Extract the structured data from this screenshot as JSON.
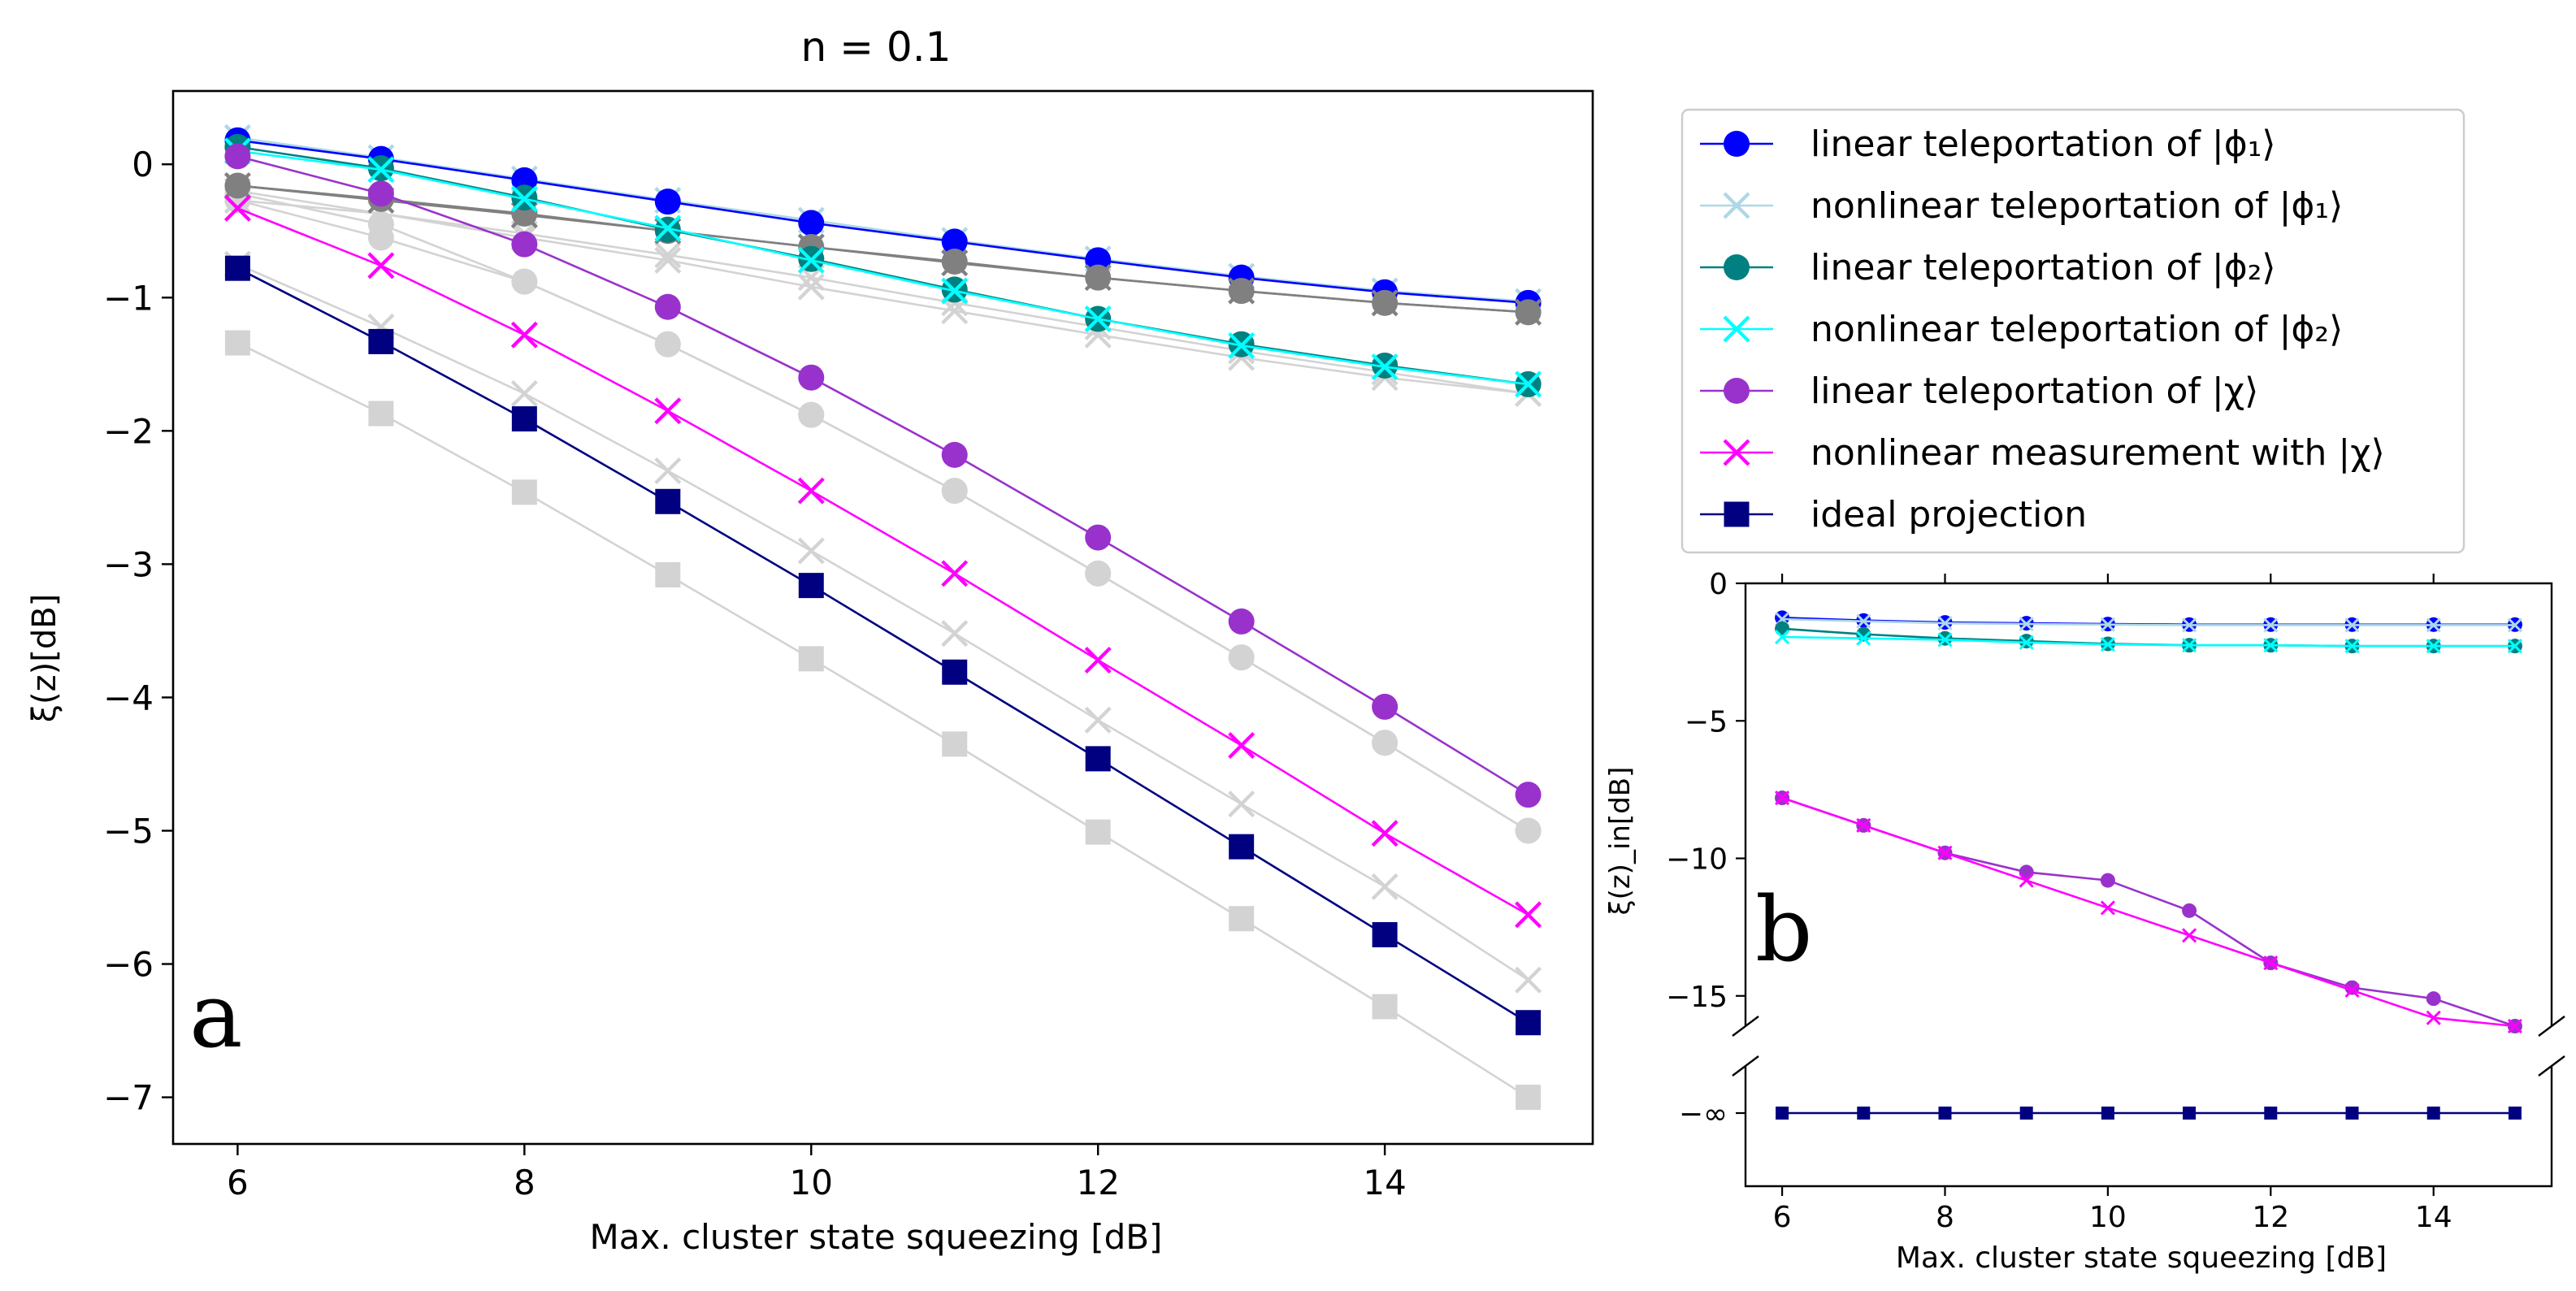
{
  "figure": {
    "title": "n = 0.1",
    "xlabel": "Max. cluster state squeezing [dB]"
  },
  "legend": {
    "placement": "top-right",
    "entries": [
      {
        "label": "linear teleportation of |ϕ₁⟩",
        "color": "#0000ff",
        "marker": "o"
      },
      {
        "label": "nonlinear teleportation of |ϕ₁⟩",
        "color": "#add8e6",
        "marker": "x"
      },
      {
        "label": "linear teleportation of |ϕ₂⟩",
        "color": "#008080",
        "marker": "o"
      },
      {
        "label": "nonlinear teleportation of |ϕ₂⟩",
        "color": "#00ffff",
        "marker": "x"
      },
      {
        "label": "linear teleportation of |χ⟩",
        "color": "#9932cc",
        "marker": "o"
      },
      {
        "label": "nonlinear measurement with |χ⟩",
        "color": "#ff00ff",
        "marker": "x"
      },
      {
        "label": "ideal projection",
        "color": "#000080",
        "marker": "s"
      }
    ]
  },
  "chart_data": [
    {
      "type": "line",
      "panel_label": "a",
      "title": "n = 0.1",
      "xlabel": "Max. cluster state squeezing [dB]",
      "ylabel": "ξ(z)[dB]",
      "xlim": [
        5.55,
        15.45
      ],
      "ylim": [
        -7.35,
        0.55
      ],
      "xticks": [
        6,
        8,
        10,
        12,
        14
      ],
      "yticks": [
        0,
        -1,
        -2,
        -3,
        -4,
        -5,
        -6,
        -7
      ],
      "x": [
        6,
        7,
        8,
        9,
        10,
        11,
        12,
        13,
        14,
        15
      ],
      "grid": false,
      "series": [
        {
          "name": "nonlinear teleportation of |ϕ₁⟩",
          "color": "#add8e6",
          "marker": "x",
          "values": [
            0.2,
            0.05,
            -0.11,
            -0.27,
            -0.42,
            -0.57,
            -0.71,
            -0.84,
            -0.95,
            -1.03
          ]
        },
        {
          "name": "linear teleportation of |ϕ₁⟩",
          "color": "#0000ff",
          "marker": "o",
          "values": [
            0.18,
            0.04,
            -0.12,
            -0.28,
            -0.44,
            -0.58,
            -0.72,
            -0.85,
            -0.96,
            -1.04
          ]
        },
        {
          "color": "#d3d3d3",
          "marker": "x",
          "values": [
            -0.27,
            -0.37,
            -0.52,
            -0.68,
            -0.85,
            -1.04,
            -1.22,
            -1.4,
            -1.56,
            -1.72
          ]
        },
        {
          "color": "#d3d3d3",
          "marker": "o",
          "values": [
            -0.22,
            -0.45,
            -0.88,
            -1.35,
            -1.88,
            -2.45,
            -3.07,
            -3.7,
            -4.34,
            -5.0
          ]
        },
        {
          "color": "#d3d3d3",
          "marker": "x",
          "values": [
            -0.2,
            -0.37,
            -0.55,
            -0.72,
            -0.92,
            -1.1,
            -1.28,
            -1.45,
            -1.6,
            -1.72
          ]
        },
        {
          "color": "#d3d3d3",
          "marker": "o",
          "values": [
            -0.27,
            -0.55,
            -0.88,
            -1.35,
            -1.88,
            -2.45,
            -3.07,
            -3.7,
            -4.34,
            -5.0
          ]
        },
        {
          "color": "#d3d3d3",
          "marker": "x",
          "values": [
            -0.75,
            -1.22,
            -1.72,
            -2.3,
            -2.9,
            -3.52,
            -4.17,
            -4.8,
            -5.42,
            -6.12
          ]
        },
        {
          "color": "#d3d3d3",
          "marker": "s",
          "values": [
            -1.34,
            -1.87,
            -2.46,
            -3.08,
            -3.71,
            -4.35,
            -5.01,
            -5.66,
            -6.32,
            -7.0
          ]
        },
        {
          "color": "#808080",
          "marker": "o",
          "values": [
            -0.16,
            -0.26,
            -0.37,
            -0.5,
            -0.62,
            -0.73,
            -0.85,
            -0.95,
            -1.04,
            -1.11
          ]
        },
        {
          "color": "#808080",
          "marker": "x",
          "values": [
            -0.16,
            -0.27,
            -0.38,
            -0.5,
            -0.62,
            -0.74,
            -0.85,
            -0.95,
            -1.04,
            -1.11
          ]
        },
        {
          "name": "linear teleportation of |ϕ₂⟩",
          "color": "#008080",
          "marker": "o",
          "values": [
            0.13,
            -0.03,
            -0.25,
            -0.49,
            -0.71,
            -0.94,
            -1.16,
            -1.35,
            -1.51,
            -1.65
          ]
        },
        {
          "name": "nonlinear teleportation of |ϕ₂⟩",
          "color": "#00ffff",
          "marker": "x",
          "values": [
            0.1,
            -0.04,
            -0.26,
            -0.48,
            -0.72,
            -0.95,
            -1.16,
            -1.36,
            -1.52,
            -1.65
          ]
        },
        {
          "name": "linear teleportation of |χ⟩",
          "color": "#9932cc",
          "marker": "o",
          "values": [
            0.06,
            -0.22,
            -0.6,
            -1.07,
            -1.6,
            -2.18,
            -2.8,
            -3.43,
            -4.07,
            -4.73
          ]
        },
        {
          "name": "nonlinear measurement with |χ⟩",
          "color": "#ff00ff",
          "marker": "x",
          "values": [
            -0.33,
            -0.76,
            -1.28,
            -1.85,
            -2.45,
            -3.07,
            -3.72,
            -4.36,
            -5.02,
            -5.63
          ]
        },
        {
          "name": "ideal projection",
          "color": "#000080",
          "marker": "s",
          "values": [
            -0.78,
            -1.33,
            -1.91,
            -2.53,
            -3.16,
            -3.81,
            -4.46,
            -5.12,
            -5.78,
            -6.44
          ]
        }
      ]
    },
    {
      "type": "line",
      "panel_label": "b",
      "xlabel": "Max. cluster state squeezing [dB]",
      "ylabel": "ξ(z)_in[dB]",
      "xlim": [
        5.55,
        15.45
      ],
      "ylim": [
        -16.1,
        0
      ],
      "xticks": [
        6,
        8,
        10,
        12,
        14
      ],
      "yticks": [
        0,
        -5,
        -10,
        -15
      ],
      "broken_axis": true,
      "lower_tick_label": "−∞",
      "x": [
        6,
        7,
        8,
        9,
        10,
        11,
        12,
        13,
        14,
        15
      ],
      "grid": false,
      "series": [
        {
          "name": "linear teleportation of |ϕ₁⟩",
          "color": "#0000ff",
          "marker": "o",
          "values": [
            -1.25,
            -1.35,
            -1.42,
            -1.45,
            -1.48,
            -1.5,
            -1.5,
            -1.5,
            -1.5,
            -1.5
          ]
        },
        {
          "name": "nonlinear teleportation of |ϕ₁⟩",
          "color": "#add8e6",
          "marker": "x",
          "values": [
            -1.3,
            -1.38,
            -1.45,
            -1.48,
            -1.5,
            -1.52,
            -1.52,
            -1.52,
            -1.52,
            -1.52
          ]
        },
        {
          "name": "linear teleportation of |ϕ₂⟩",
          "color": "#008080",
          "marker": "o",
          "values": [
            -1.65,
            -1.85,
            -2.0,
            -2.1,
            -2.2,
            -2.25,
            -2.25,
            -2.28,
            -2.28,
            -2.28
          ]
        },
        {
          "name": "nonlinear teleportation of |ϕ₂⟩",
          "color": "#00ffff",
          "marker": "x",
          "values": [
            -1.95,
            -2.0,
            -2.05,
            -2.15,
            -2.22,
            -2.25,
            -2.25,
            -2.28,
            -2.28,
            -2.28
          ]
        },
        {
          "name": "linear teleportation of |χ⟩",
          "color": "#9932cc",
          "marker": "o",
          "values": [
            -7.8,
            -8.8,
            -9.8,
            -10.5,
            -10.8,
            -11.9,
            -13.8,
            -14.7,
            -15.1,
            -16.1
          ]
        },
        {
          "name": "nonlinear measurement with |χ⟩",
          "color": "#ff00ff",
          "marker": "x",
          "values": [
            -7.8,
            -8.8,
            -9.8,
            -10.8,
            -11.8,
            -12.8,
            -13.8,
            -14.8,
            -15.8,
            -16.1
          ]
        },
        {
          "name": "ideal projection",
          "color": "#000080",
          "marker": "s",
          "at_lower_axis": true,
          "values": [
            null,
            null,
            null,
            null,
            null,
            null,
            null,
            null,
            null,
            null
          ]
        }
      ]
    }
  ]
}
